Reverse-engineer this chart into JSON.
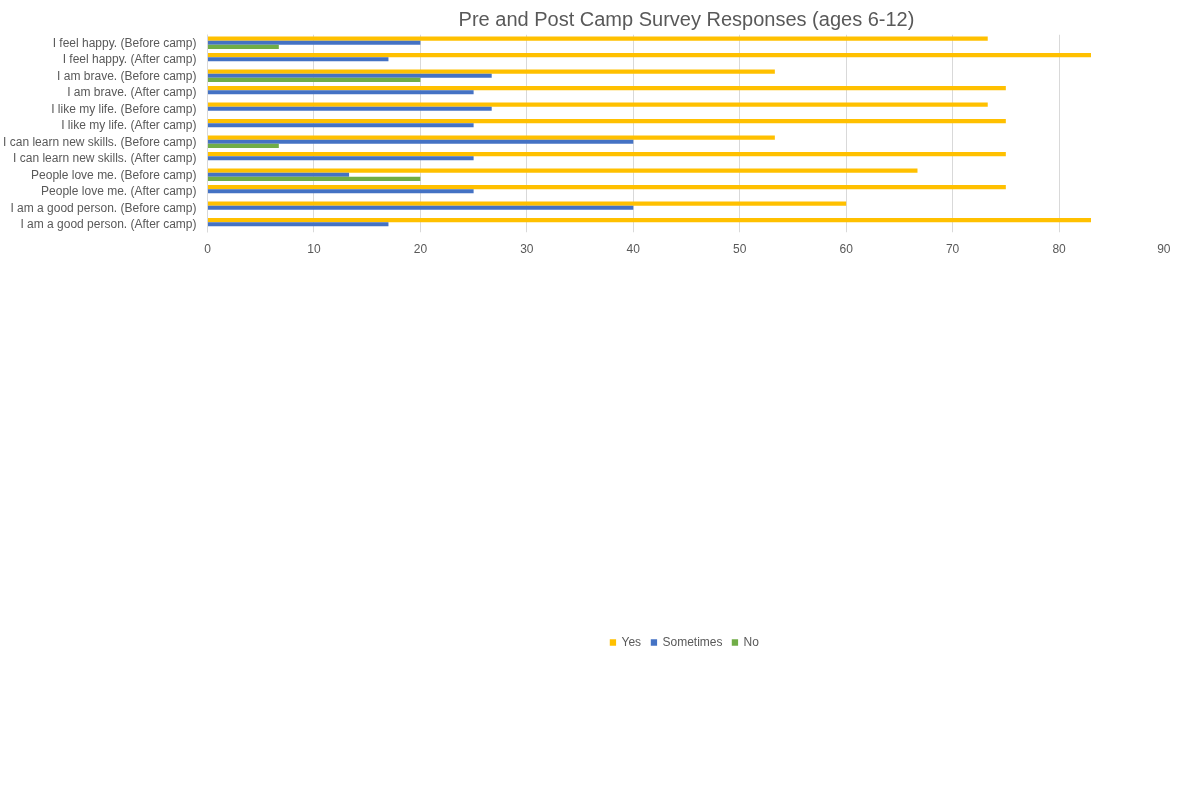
{
  "chart_data": {
    "type": "bar",
    "orientation": "horizontal",
    "title": "Pre and Post Camp Survey Responses (ages 6-12)",
    "categories": [
      "I feel happy. (Before camp)",
      "I feel happy. (After camp)",
      "I am brave. (Before camp)",
      "I am brave. (After camp)",
      "I like my life. (Before camp)",
      "I like my life. (After camp)",
      "I can learn new skills. (Before camp)",
      "I can learn new skills. (After camp)",
      "People love me. (Before camp)",
      "People love me. (After camp)",
      "I am a good person. (Before camp)",
      "I am a good person. (After camp)"
    ],
    "series": [
      {
        "name": "Yes",
        "color": "#ffc000",
        "values": [
          73.3,
          83,
          53.3,
          75,
          73.3,
          75,
          53.3,
          75,
          66.7,
          75,
          60,
          83
        ]
      },
      {
        "name": "Sometimes",
        "color": "#4472c4",
        "values": [
          20,
          17,
          26.7,
          25,
          26.7,
          25,
          40,
          25,
          13.3,
          25,
          40,
          17
        ]
      },
      {
        "name": "No",
        "color": "#70ad47",
        "values": [
          6.7,
          0,
          20,
          0,
          0,
          0,
          6.7,
          0,
          20,
          0,
          0,
          0
        ]
      }
    ],
    "xlim": [
      0,
      90
    ],
    "xticks": [
      0,
      10,
      20,
      30,
      40,
      50,
      60,
      70,
      80,
      90
    ],
    "grid": "x",
    "legend": "bottom"
  }
}
